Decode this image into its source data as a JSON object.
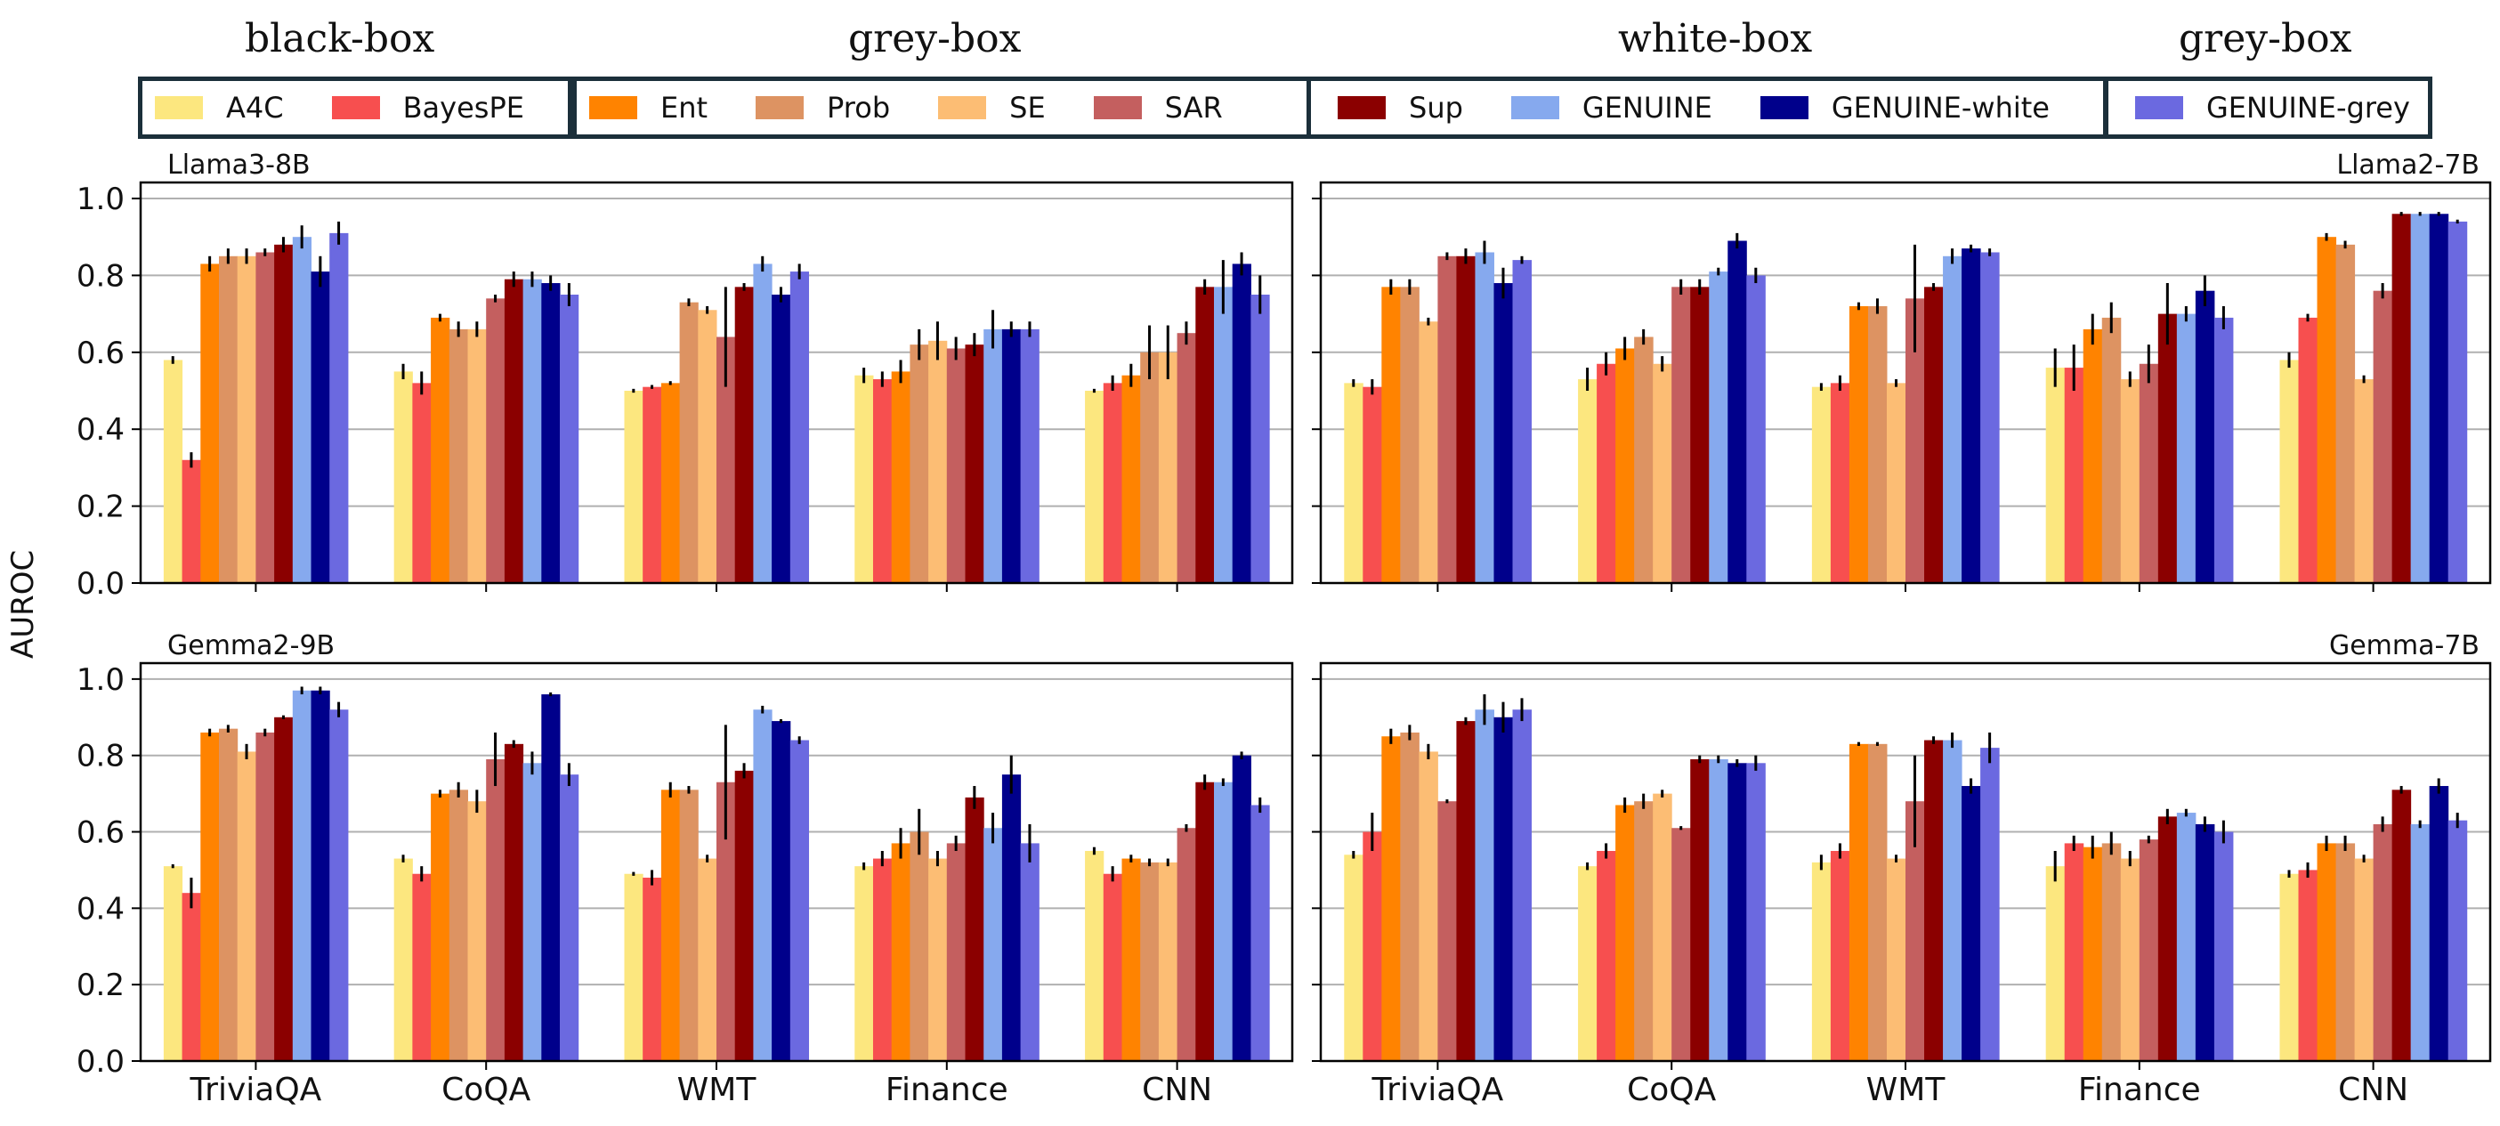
{
  "legend_groups": [
    {
      "title": "black-box",
      "items": [
        {
          "label": "A4C",
          "color": "#fce77f"
        },
        {
          "label": "BayesPE",
          "color": "#f74f4f"
        }
      ]
    },
    {
      "title": "grey-box",
      "items": [
        {
          "label": "Ent",
          "color": "#ff8300"
        },
        {
          "label": "Prob",
          "color": "#dd9362"
        },
        {
          "label": "SE",
          "color": "#fcbd74"
        },
        {
          "label": "SAR",
          "color": "#c45f5f"
        }
      ]
    },
    {
      "title": "white-box",
      "items": [
        {
          "label": "Sup",
          "color": "#8b0000"
        },
        {
          "label": "GENUINE",
          "color": "#86a9ee"
        },
        {
          "label": "GENUINE-white",
          "color": "#00008b"
        }
      ]
    },
    {
      "title": "grey-box",
      "items": [
        {
          "label": "GENUINE-grey",
          "color": "#6b69e0"
        }
      ]
    }
  ],
  "chart_data": {
    "type": "bar",
    "ylabel": "AUROC",
    "ylim": [
      0,
      1.0
    ],
    "yticks": [
      "0.0",
      "0.2",
      "0.4",
      "0.6",
      "0.8",
      "1.0"
    ],
    "grid": "horizontal",
    "categories": [
      "TriviaQA",
      "CoQA",
      "WMT",
      "Finance",
      "CNN"
    ],
    "series_names": [
      "A4C",
      "BayesPE",
      "Ent",
      "Prob",
      "SE",
      "SAR",
      "Sup",
      "GENUINE",
      "GENUINE-white",
      "GENUINE-grey"
    ],
    "series_colors": [
      "#fce77f",
      "#f74f4f",
      "#ff8300",
      "#dd9362",
      "#fcbd74",
      "#c45f5f",
      "#8b0000",
      "#86a9ee",
      "#00008b",
      "#6b69e0"
    ],
    "panels": [
      {
        "title": "Llama3-8B",
        "title_align": "left",
        "values": [
          [
            0.58,
            0.32,
            0.83,
            0.85,
            0.85,
            0.86,
            0.88,
            0.9,
            0.81,
            0.91
          ],
          [
            0.55,
            0.52,
            0.69,
            0.66,
            0.66,
            0.74,
            0.79,
            0.79,
            0.78,
            0.75
          ],
          [
            0.5,
            0.51,
            0.52,
            0.73,
            0.71,
            0.64,
            0.77,
            0.83,
            0.75,
            0.81
          ],
          [
            0.54,
            0.53,
            0.55,
            0.62,
            0.63,
            0.61,
            0.62,
            0.66,
            0.66,
            0.66
          ],
          [
            0.5,
            0.52,
            0.54,
            0.6,
            0.6,
            0.65,
            0.77,
            0.77,
            0.83,
            0.75
          ]
        ],
        "errors": [
          [
            0.01,
            0.02,
            0.02,
            0.02,
            0.02,
            0.01,
            0.02,
            0.03,
            0.04,
            0.03
          ],
          [
            0.02,
            0.03,
            0.01,
            0.02,
            0.02,
            0.01,
            0.02,
            0.02,
            0.02,
            0.03
          ],
          [
            0.005,
            0.005,
            0.005,
            0.01,
            0.01,
            0.13,
            0.01,
            0.02,
            0.02,
            0.02
          ],
          [
            0.02,
            0.02,
            0.03,
            0.04,
            0.05,
            0.03,
            0.03,
            0.05,
            0.02,
            0.02
          ],
          [
            0.005,
            0.02,
            0.03,
            0.07,
            0.07,
            0.03,
            0.02,
            0.07,
            0.03,
            0.05
          ]
        ]
      },
      {
        "title": "Llama2-7B",
        "title_align": "right",
        "values": [
          [
            0.52,
            0.51,
            0.77,
            0.77,
            0.68,
            0.85,
            0.85,
            0.86,
            0.78,
            0.84
          ],
          [
            0.53,
            0.57,
            0.61,
            0.64,
            0.57,
            0.77,
            0.77,
            0.81,
            0.89,
            0.8
          ],
          [
            0.51,
            0.52,
            0.72,
            0.72,
            0.52,
            0.74,
            0.77,
            0.85,
            0.87,
            0.86
          ],
          [
            0.56,
            0.56,
            0.66,
            0.69,
            0.53,
            0.57,
            0.7,
            0.7,
            0.76,
            0.69
          ],
          [
            0.58,
            0.69,
            0.9,
            0.88,
            0.53,
            0.76,
            0.96,
            0.96,
            0.96,
            0.94
          ]
        ],
        "errors": [
          [
            0.01,
            0.02,
            0.02,
            0.02,
            0.01,
            0.01,
            0.02,
            0.03,
            0.04,
            0.01
          ],
          [
            0.03,
            0.03,
            0.03,
            0.02,
            0.02,
            0.02,
            0.02,
            0.01,
            0.02,
            0.02
          ],
          [
            0.01,
            0.02,
            0.01,
            0.02,
            0.01,
            0.14,
            0.01,
            0.02,
            0.01,
            0.01
          ],
          [
            0.05,
            0.06,
            0.04,
            0.04,
            0.02,
            0.05,
            0.08,
            0.02,
            0.04,
            0.03
          ],
          [
            0.02,
            0.01,
            0.01,
            0.01,
            0.01,
            0.02,
            0.005,
            0.005,
            0.005,
            0.005
          ]
        ]
      },
      {
        "title": "Gemma2-9B",
        "title_align": "left",
        "values": [
          [
            0.51,
            0.44,
            0.86,
            0.87,
            0.81,
            0.86,
            0.9,
            0.97,
            0.97,
            0.92
          ],
          [
            0.53,
            0.49,
            0.7,
            0.71,
            0.68,
            0.79,
            0.83,
            0.78,
            0.96,
            0.75
          ],
          [
            0.49,
            0.48,
            0.71,
            0.71,
            0.53,
            0.73,
            0.76,
            0.92,
            0.89,
            0.84
          ],
          [
            0.51,
            0.53,
            0.57,
            0.6,
            0.53,
            0.57,
            0.69,
            0.61,
            0.75,
            0.57
          ],
          [
            0.55,
            0.49,
            0.53,
            0.52,
            0.52,
            0.61,
            0.73,
            0.73,
            0.8,
            0.67
          ]
        ],
        "errors": [
          [
            0.005,
            0.04,
            0.01,
            0.01,
            0.02,
            0.01,
            0.005,
            0.01,
            0.01,
            0.02
          ],
          [
            0.01,
            0.02,
            0.01,
            0.02,
            0.03,
            0.07,
            0.01,
            0.03,
            0.005,
            0.03
          ],
          [
            0.005,
            0.02,
            0.02,
            0.01,
            0.01,
            0.15,
            0.02,
            0.01,
            0.005,
            0.01
          ],
          [
            0.01,
            0.02,
            0.04,
            0.06,
            0.02,
            0.02,
            0.03,
            0.04,
            0.05,
            0.05
          ],
          [
            0.01,
            0.02,
            0.01,
            0.01,
            0.01,
            0.01,
            0.02,
            0.01,
            0.01,
            0.02
          ]
        ]
      },
      {
        "title": "Gemma-7B",
        "title_align": "right",
        "values": [
          [
            0.54,
            0.6,
            0.85,
            0.86,
            0.81,
            0.68,
            0.89,
            0.92,
            0.9,
            0.92
          ],
          [
            0.51,
            0.55,
            0.67,
            0.68,
            0.7,
            0.61,
            0.79,
            0.79,
            0.78,
            0.78
          ],
          [
            0.52,
            0.55,
            0.83,
            0.83,
            0.53,
            0.68,
            0.84,
            0.84,
            0.72,
            0.82
          ],
          [
            0.51,
            0.57,
            0.56,
            0.57,
            0.53,
            0.58,
            0.64,
            0.65,
            0.62,
            0.6
          ],
          [
            0.49,
            0.5,
            0.57,
            0.57,
            0.53,
            0.62,
            0.71,
            0.62,
            0.72,
            0.63
          ]
        ],
        "errors": [
          [
            0.01,
            0.05,
            0.02,
            0.02,
            0.02,
            0.005,
            0.01,
            0.04,
            0.04,
            0.03
          ],
          [
            0.01,
            0.02,
            0.02,
            0.02,
            0.01,
            0.005,
            0.01,
            0.01,
            0.01,
            0.02
          ],
          [
            0.02,
            0.02,
            0.005,
            0.005,
            0.01,
            0.12,
            0.01,
            0.02,
            0.02,
            0.04
          ],
          [
            0.04,
            0.02,
            0.03,
            0.03,
            0.02,
            0.01,
            0.02,
            0.01,
            0.02,
            0.03
          ],
          [
            0.01,
            0.02,
            0.02,
            0.02,
            0.01,
            0.02,
            0.01,
            0.01,
            0.02,
            0.02
          ]
        ]
      }
    ]
  }
}
